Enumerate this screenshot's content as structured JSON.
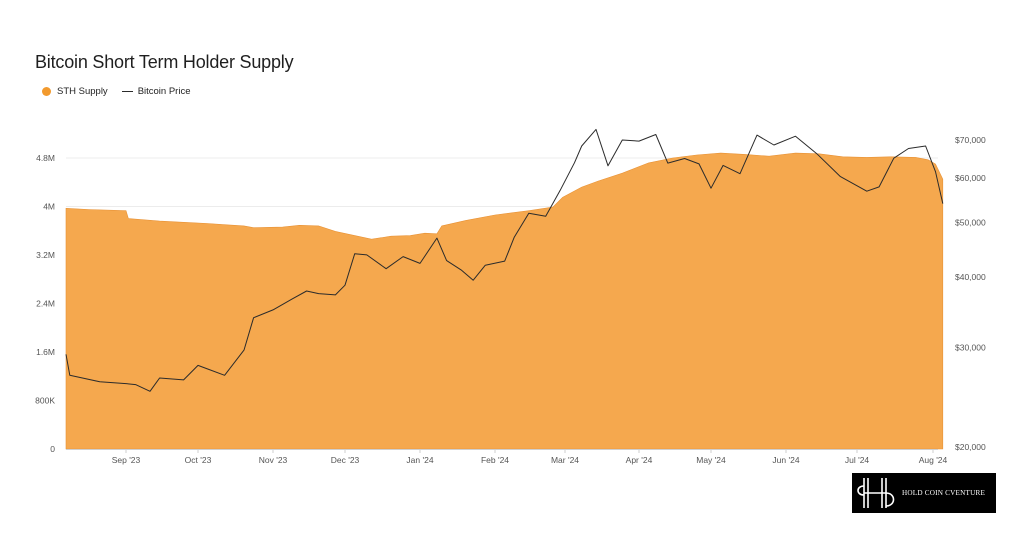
{
  "title": "Bitcoin Short Term Holder Supply",
  "legend": {
    "supply_label": "STH Supply",
    "price_label": "Bitcoin Price"
  },
  "colors": {
    "supply": "#f5a84e",
    "legend_dot": "#f29a2e",
    "price": "#2b2b2b",
    "grid": "#ececec",
    "axis_text": "#555555"
  },
  "logo": {
    "text": "HOLD COIN CVENTURE"
  },
  "chart_data": {
    "type": "area",
    "x_tick_labels": [
      "Sep '23",
      "Oct '23",
      "Nov '23",
      "Dec '23",
      "Jan '24",
      "Feb '24",
      "Mar '24",
      "Apr '24",
      "May '24",
      "Jun '24",
      "Jul '24",
      "Aug '24"
    ],
    "left_axis": {
      "ticks": [
        0,
        800000,
        1600000,
        2400000,
        3200000,
        4000000,
        4800000
      ],
      "tick_labels": [
        "0",
        "800K",
        "1.6M",
        "2.4M",
        "3.2M",
        "4M",
        "4.8M"
      ],
      "range": [
        0,
        4800000
      ]
    },
    "right_axis": {
      "scale": "log",
      "ticks": [
        20000,
        30000,
        40000,
        50000,
        60000,
        70000
      ],
      "tick_labels": [
        "$20,000",
        "$30,000",
        "$40,000",
        "$50,000",
        "$60,000",
        "$70,000"
      ],
      "range": [
        20000,
        70000
      ]
    },
    "grid": true,
    "x_range": [
      "2023-08-16",
      "2024-08-05"
    ],
    "series": [
      {
        "name": "STH Supply",
        "axis": "left",
        "type": "area",
        "points": [
          [
            "2023-08-16",
            3970000
          ],
          [
            "2023-08-22",
            3950000
          ],
          [
            "2023-09-01",
            3930000
          ],
          [
            "2023-09-02",
            3800000
          ],
          [
            "2023-09-15",
            3760000
          ],
          [
            "2023-09-25",
            3740000
          ],
          [
            "2023-10-05",
            3720000
          ],
          [
            "2023-10-12",
            3700000
          ],
          [
            "2023-10-20",
            3680000
          ],
          [
            "2023-10-24",
            3650000
          ],
          [
            "2023-11-05",
            3660000
          ],
          [
            "2023-11-12",
            3690000
          ],
          [
            "2023-11-20",
            3680000
          ],
          [
            "2023-11-27",
            3590000
          ],
          [
            "2023-12-05",
            3520000
          ],
          [
            "2023-12-12",
            3460000
          ],
          [
            "2023-12-20",
            3510000
          ],
          [
            "2023-12-28",
            3520000
          ],
          [
            "2024-01-03",
            3560000
          ],
          [
            "2024-01-08",
            3550000
          ],
          [
            "2024-01-10",
            3680000
          ],
          [
            "2024-01-20",
            3770000
          ],
          [
            "2024-02-01",
            3860000
          ],
          [
            "2024-02-15",
            3930000
          ],
          [
            "2024-02-25",
            3990000
          ],
          [
            "2024-02-29",
            4150000
          ],
          [
            "2024-03-08",
            4320000
          ],
          [
            "2024-03-15",
            4420000
          ],
          [
            "2024-03-25",
            4550000
          ],
          [
            "2024-04-05",
            4720000
          ],
          [
            "2024-04-15",
            4800000
          ],
          [
            "2024-04-25",
            4850000
          ],
          [
            "2024-05-05",
            4880000
          ],
          [
            "2024-05-15",
            4860000
          ],
          [
            "2024-05-25",
            4830000
          ],
          [
            "2024-06-05",
            4880000
          ],
          [
            "2024-06-15",
            4870000
          ],
          [
            "2024-06-25",
            4820000
          ],
          [
            "2024-07-05",
            4810000
          ],
          [
            "2024-07-15",
            4820000
          ],
          [
            "2024-07-25",
            4810000
          ],
          [
            "2024-07-30",
            4770000
          ],
          [
            "2024-08-02",
            4700000
          ],
          [
            "2024-08-05",
            4450000
          ]
        ]
      },
      {
        "name": "Bitcoin Price",
        "axis": "right",
        "type": "line",
        "points": [
          [
            "2023-08-16",
            29200
          ],
          [
            "2023-08-17",
            26800
          ],
          [
            "2023-08-25",
            26100
          ],
          [
            "2023-09-01",
            25900
          ],
          [
            "2023-09-05",
            25800
          ],
          [
            "2023-09-11",
            25100
          ],
          [
            "2023-09-15",
            26500
          ],
          [
            "2023-09-25",
            26300
          ],
          [
            "2023-10-01",
            27900
          ],
          [
            "2023-10-05",
            27500
          ],
          [
            "2023-10-12",
            26800
          ],
          [
            "2023-10-20",
            29700
          ],
          [
            "2023-10-24",
            33900
          ],
          [
            "2023-11-01",
            35000
          ],
          [
            "2023-11-09",
            36600
          ],
          [
            "2023-11-15",
            37800
          ],
          [
            "2023-11-20",
            37400
          ],
          [
            "2023-11-27",
            37200
          ],
          [
            "2023-12-01",
            38700
          ],
          [
            "2023-12-05",
            44000
          ],
          [
            "2023-12-10",
            43800
          ],
          [
            "2023-12-18",
            41400
          ],
          [
            "2023-12-25",
            43500
          ],
          [
            "2024-01-01",
            42300
          ],
          [
            "2024-01-08",
            46900
          ],
          [
            "2024-01-12",
            42800
          ],
          [
            "2024-01-18",
            41200
          ],
          [
            "2024-01-23",
            39500
          ],
          [
            "2024-01-28",
            42000
          ],
          [
            "2024-02-05",
            42700
          ],
          [
            "2024-02-09",
            47100
          ],
          [
            "2024-02-15",
            51900
          ],
          [
            "2024-02-22",
            51300
          ],
          [
            "2024-02-28",
            57000
          ],
          [
            "2024-03-05",
            63800
          ],
          [
            "2024-03-08",
            68300
          ],
          [
            "2024-03-14",
            73100
          ],
          [
            "2024-03-19",
            63000
          ],
          [
            "2024-03-25",
            70000
          ],
          [
            "2024-04-01",
            69700
          ],
          [
            "2024-04-08",
            71600
          ],
          [
            "2024-04-13",
            63700
          ],
          [
            "2024-04-20",
            64900
          ],
          [
            "2024-04-26",
            63500
          ],
          [
            "2024-05-01",
            57500
          ],
          [
            "2024-05-06",
            63100
          ],
          [
            "2024-05-13",
            61000
          ],
          [
            "2024-05-20",
            71400
          ],
          [
            "2024-05-27",
            68600
          ],
          [
            "2024-06-05",
            71100
          ],
          [
            "2024-06-14",
            66200
          ],
          [
            "2024-06-24",
            60300
          ],
          [
            "2024-07-05",
            56800
          ],
          [
            "2024-07-10",
            57800
          ],
          [
            "2024-07-16",
            65000
          ],
          [
            "2024-07-22",
            67600
          ],
          [
            "2024-07-29",
            68300
          ],
          [
            "2024-08-02",
            61500
          ],
          [
            "2024-08-05",
            54000
          ]
        ]
      }
    ]
  }
}
